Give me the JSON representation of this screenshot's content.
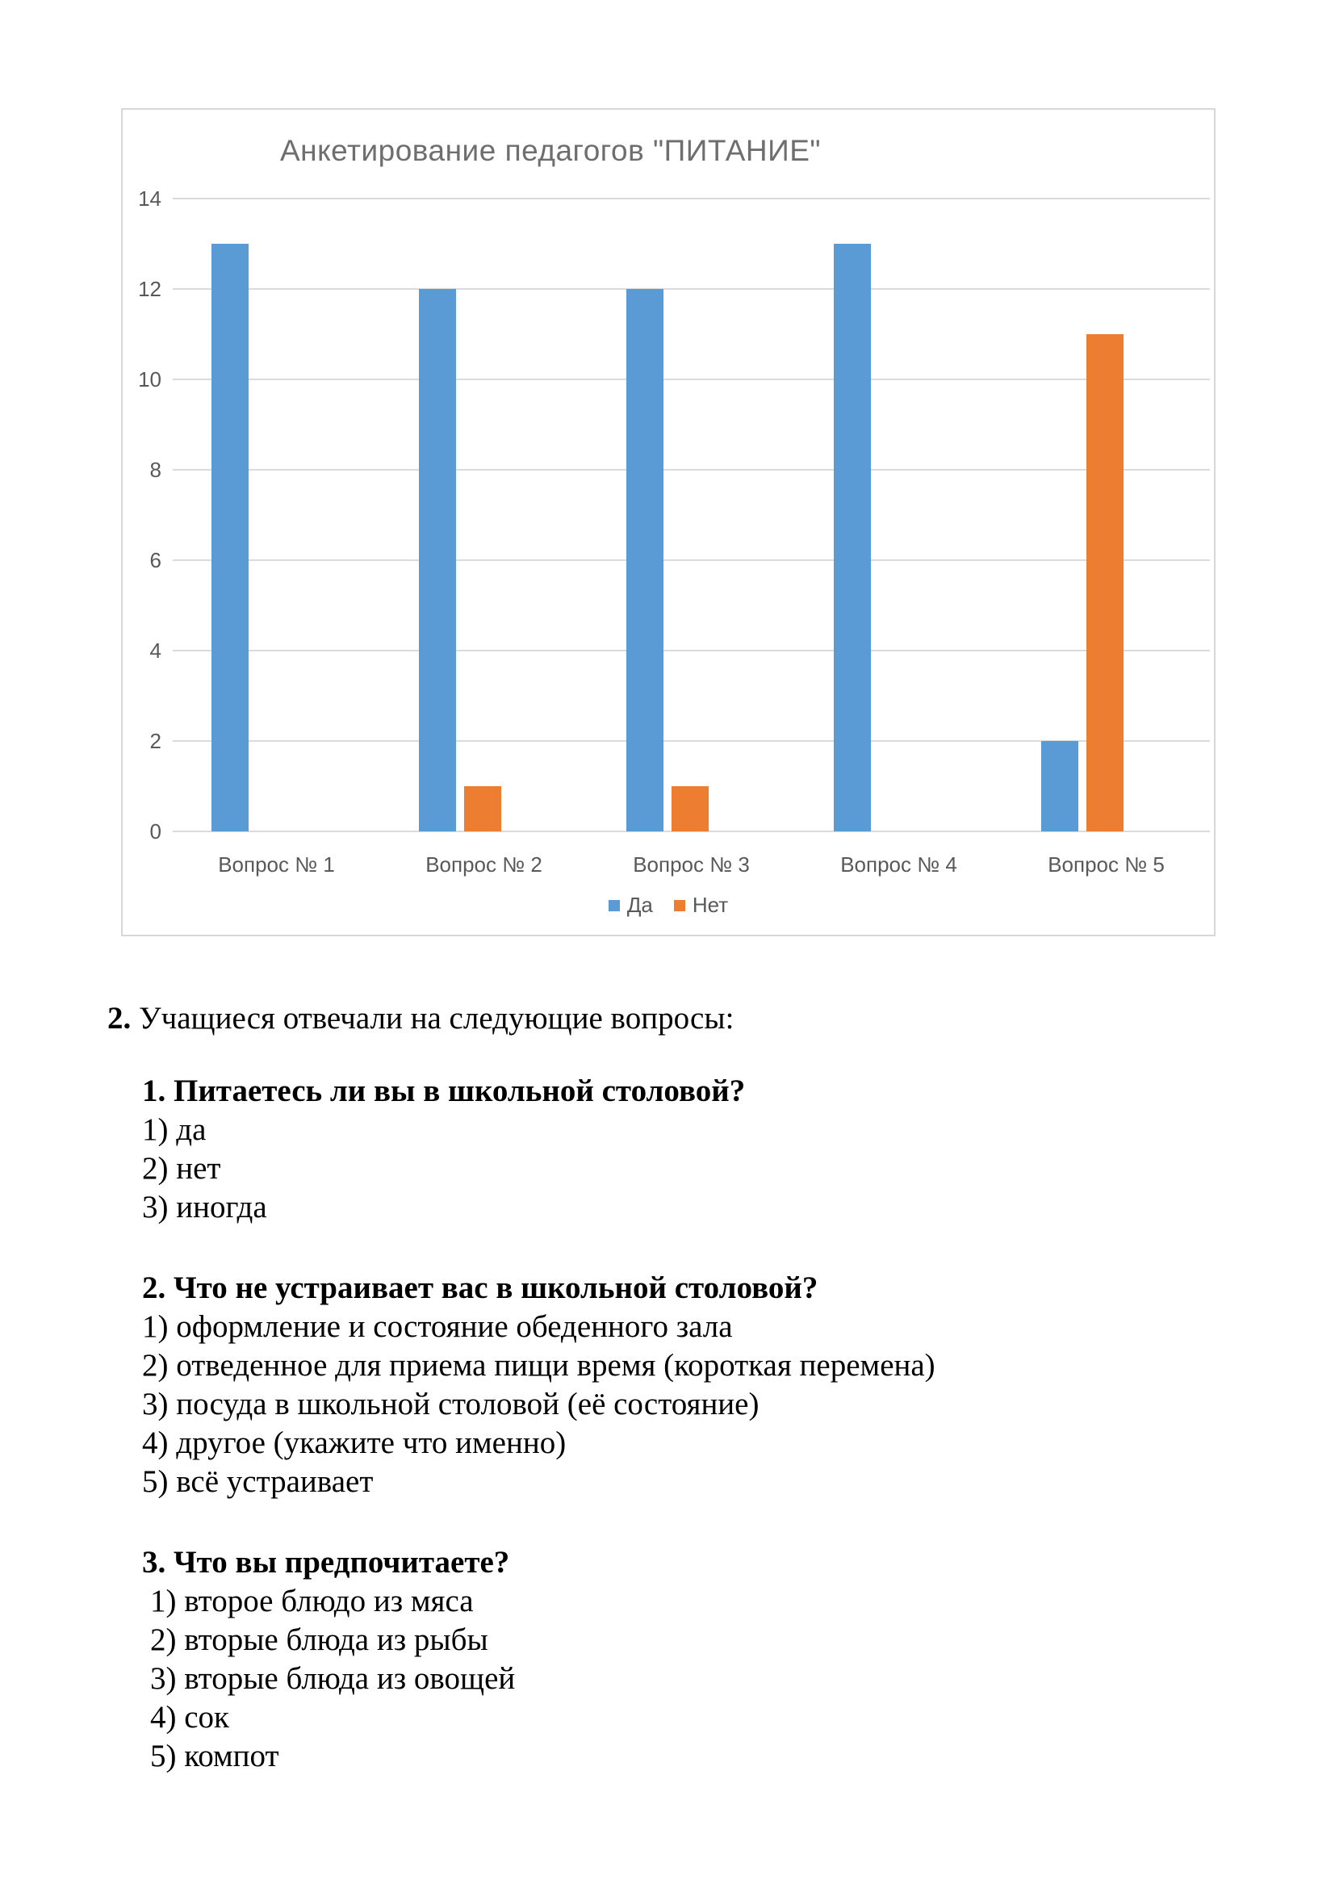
{
  "chart_data": {
    "type": "bar",
    "title": "Анкетирование педагогов \"ПИТАНИЕ\"",
    "categories": [
      "Вопрос № 1",
      "Вопрос № 2",
      "Вопрос № 3",
      "Вопрос № 4",
      "Вопрос № 5"
    ],
    "series": [
      {
        "name": "Да",
        "color": "#5B9BD5",
        "values": [
          13,
          12,
          12,
          13,
          2
        ]
      },
      {
        "name": "Нет",
        "color": "#ED7D31",
        "values": [
          0,
          1,
          1,
          0,
          11
        ]
      }
    ],
    "ylim": [
      0,
      14
    ],
    "yticks": [
      0,
      2,
      4,
      6,
      8,
      10,
      12,
      14
    ],
    "grid": true,
    "legend_position": "bottom",
    "colors": {
      "grid": "#DBDBDB",
      "axis_text": "#595959",
      "title_text": "#6E6E6E",
      "panel_border": "#D8D8D8"
    }
  },
  "document": {
    "intro": {
      "number": "2.",
      "text": " Учащиеся отвечали на следующие вопросы:"
    },
    "sections": [
      {
        "heading": "1. Питаетесь ли вы в школьной столовой?",
        "items": [
          "1) да",
          "2) нет",
          "3) иногда"
        ]
      },
      {
        "heading": "2. Что не устраивает вас в школьной столовой?",
        "items": [
          "1) оформление и состояние обеденного зала",
          "2) отведенное для приема пищи время (короткая перемена)",
          "3) посуда в школьной столовой (её состояние)",
          "4) другое (укажите что именно)",
          "5) всё устраивает"
        ]
      },
      {
        "heading": "3. Что вы предпочитаете?",
        "items": [
          "1) второе блюдо из мяса",
          "2) вторые блюда из рыбы",
          "3) вторые блюда из овощей",
          "4) сок",
          "5) компот"
        ]
      }
    ]
  }
}
